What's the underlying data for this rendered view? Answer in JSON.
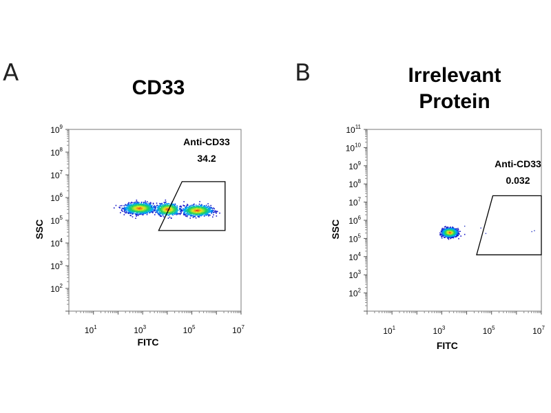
{
  "panels": {
    "a": {
      "letter": "A",
      "title": "CD33"
    },
    "b": {
      "letter": "B",
      "title_line1": "Irrelevant",
      "title_line2": "Protein"
    }
  },
  "chart_data": [
    {
      "type": "scatter",
      "subtype": "flow-cytometry-density-plot",
      "title": "CD33",
      "xlabel": "FITC",
      "ylabel": "SSC",
      "x_scale": "log",
      "y_scale": "log",
      "xlim": [
        1,
        10000000
      ],
      "ylim": [
        10,
        1000000000
      ],
      "x_ticks": [
        {
          "base": "10",
          "exp": "1",
          "value": 10
        },
        {
          "base": "10",
          "exp": "3",
          "value": 1000
        },
        {
          "base": "10",
          "exp": "5",
          "value": 100000
        },
        {
          "base": "10",
          "exp": "7",
          "value": 10000000
        }
      ],
      "y_ticks": [
        {
          "base": "10",
          "exp": "2",
          "value": 100
        },
        {
          "base": "10",
          "exp": "3",
          "value": 1000
        },
        {
          "base": "10",
          "exp": "4",
          "value": 10000
        },
        {
          "base": "10",
          "exp": "5",
          "value": 100000
        },
        {
          "base": "10",
          "exp": "6",
          "value": 1000000
        },
        {
          "base": "10",
          "exp": "7",
          "value": 10000000
        },
        {
          "base": "10",
          "exp": "8",
          "value": 100000000
        },
        {
          "base": "10",
          "exp": "9",
          "value": 1000000000
        }
      ],
      "gate": {
        "name": "Anti-CD33",
        "percent": "34.2",
        "vertices_log10": [
          [
            4.6,
            6.7
          ],
          [
            6.35,
            6.7
          ],
          [
            6.35,
            4.55
          ],
          [
            3.65,
            4.55
          ]
        ]
      },
      "populations": [
        {
          "center_log10": [
            2.85,
            5.55
          ],
          "spread_log10": [
            0.55,
            0.22
          ],
          "count": 1300
        },
        {
          "center_log10": [
            5.2,
            5.45
          ],
          "spread_log10": [
            0.55,
            0.22
          ],
          "count": 1100
        },
        {
          "center_log10": [
            4.0,
            5.5
          ],
          "spread_log10": [
            0.45,
            0.25
          ],
          "count": 600
        }
      ],
      "grid": false
    },
    {
      "type": "scatter",
      "subtype": "flow-cytometry-density-plot",
      "title": "Irrelevant Protein",
      "xlabel": "FITC",
      "ylabel": "SSC",
      "x_scale": "log",
      "y_scale": "log",
      "xlim": [
        1,
        10000000
      ],
      "ylim": [
        10,
        100000000000
      ],
      "x_ticks": [
        {
          "base": "10",
          "exp": "1",
          "value": 10
        },
        {
          "base": "10",
          "exp": "3",
          "value": 1000
        },
        {
          "base": "10",
          "exp": "5",
          "value": 100000
        },
        {
          "base": "10",
          "exp": "7",
          "value": 10000000
        }
      ],
      "y_ticks": [
        {
          "base": "10",
          "exp": "2",
          "value": 100
        },
        {
          "base": "10",
          "exp": "3",
          "value": 1000
        },
        {
          "base": "10",
          "exp": "4",
          "value": 10000
        },
        {
          "base": "10",
          "exp": "5",
          "value": 100000
        },
        {
          "base": "10",
          "exp": "6",
          "value": 1000000
        },
        {
          "base": "10",
          "exp": "7",
          "value": 10000000
        },
        {
          "base": "10",
          "exp": "8",
          "value": 100000000
        },
        {
          "base": "10",
          "exp": "9",
          "value": 1000000000
        },
        {
          "base": "10",
          "exp": "10",
          "value": 10000000000
        },
        {
          "base": "10",
          "exp": "11",
          "value": 100000000000
        }
      ],
      "gate": {
        "name": "Anti-CD33",
        "percent": "0.032",
        "vertices_log10": [
          [
            5.05,
            7.35
          ],
          [
            7.0,
            7.35
          ],
          [
            7.0,
            4.1
          ],
          [
            4.4,
            4.1
          ]
        ]
      },
      "populations": [
        {
          "center_log10": [
            3.3,
            5.35
          ],
          "spread_log10": [
            0.28,
            0.22
          ],
          "count": 1400
        }
      ],
      "grid": false
    }
  ]
}
